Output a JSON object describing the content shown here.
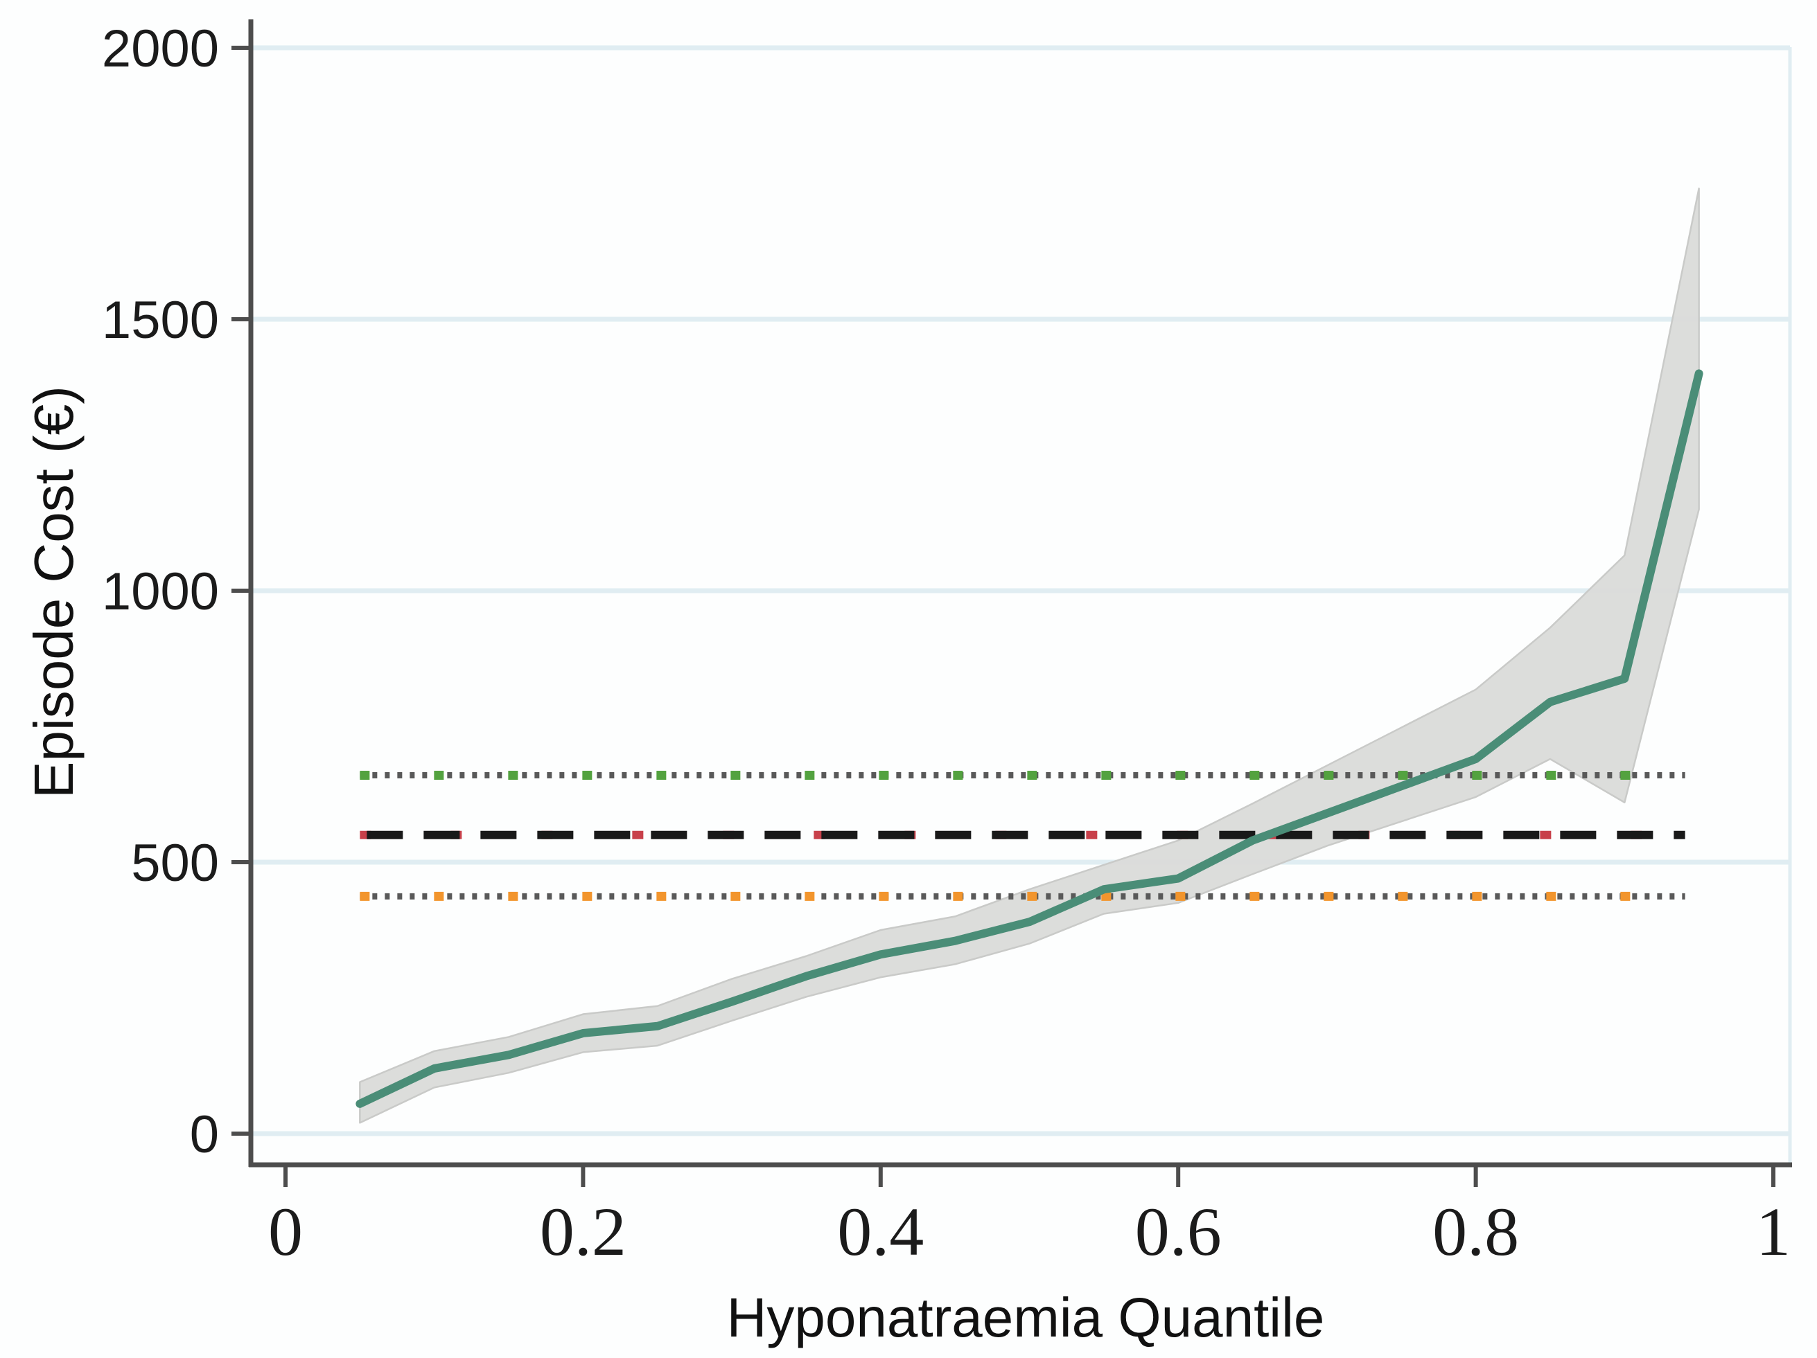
{
  "chart_data": {
    "type": "line",
    "title": "",
    "xlabel": "Hyponatraemia Quantile",
    "ylabel": "Episode Cost (€)",
    "xlim": [
      0,
      1
    ],
    "ylim": [
      0,
      2050
    ],
    "grid": "horizontal",
    "legend": "none",
    "x_ticks": {
      "values": [
        0,
        0.2,
        0.4,
        0.6,
        0.8,
        1
      ],
      "labels": [
        "0",
        "0.2",
        "0.4",
        "0.6",
        "0.8",
        "1"
      ]
    },
    "y_ticks": {
      "values": [
        0,
        500,
        1000,
        1500,
        2000
      ],
      "labels": [
        "0",
        "500",
        "1000",
        "1500",
        "2000"
      ]
    },
    "series": [
      {
        "name": "episode-cost-by-quantile",
        "color": "#4a8d77",
        "x": [
          0.05,
          0.1,
          0.15,
          0.2,
          0.25,
          0.3,
          0.35,
          0.4,
          0.45,
          0.5,
          0.55,
          0.6,
          0.65,
          0.7,
          0.75,
          0.8,
          0.85,
          0.9,
          0.95
        ],
        "y": [
          55,
          120,
          145,
          185,
          198,
          243,
          290,
          330,
          355,
          390,
          450,
          470,
          540,
          590,
          640,
          690,
          795,
          838,
          1400
        ]
      }
    ],
    "band": {
      "name": "confidence-band",
      "color": "#dadbd9",
      "edge_color": "#c9cac8",
      "x": [
        0.05,
        0.1,
        0.15,
        0.2,
        0.25,
        0.3,
        0.35,
        0.4,
        0.45,
        0.5,
        0.55,
        0.6,
        0.65,
        0.7,
        0.75,
        0.8,
        0.85,
        0.9,
        0.95
      ],
      "lower": [
        20,
        85,
        112,
        150,
        162,
        208,
        252,
        288,
        312,
        350,
        405,
        425,
        478,
        530,
        575,
        620,
        690,
        610,
        1150
      ],
      "upper": [
        95,
        152,
        178,
        220,
        235,
        285,
        327,
        375,
        400,
        450,
        495,
        540,
        608,
        678,
        748,
        818,
        932,
        1065,
        1741
      ]
    },
    "reference_lines": [
      {
        "name": "upper-dotted-reference",
        "value": 660,
        "style": "dotted",
        "base_color": "#595959",
        "accent_color": "#53a23f"
      },
      {
        "name": "mean-dashed-reference",
        "value": 550,
        "style": "dashed",
        "base_color": "#191919",
        "accent_color": "#c8404a"
      },
      {
        "name": "lower-dotted-reference",
        "value": 437,
        "style": "dotted",
        "base_color": "#595959",
        "accent_color": "#f2952d"
      }
    ],
    "colors": {
      "gridline": "#e0edf2",
      "axis": "#4d4d4d",
      "text": "#1b1b1b"
    }
  }
}
